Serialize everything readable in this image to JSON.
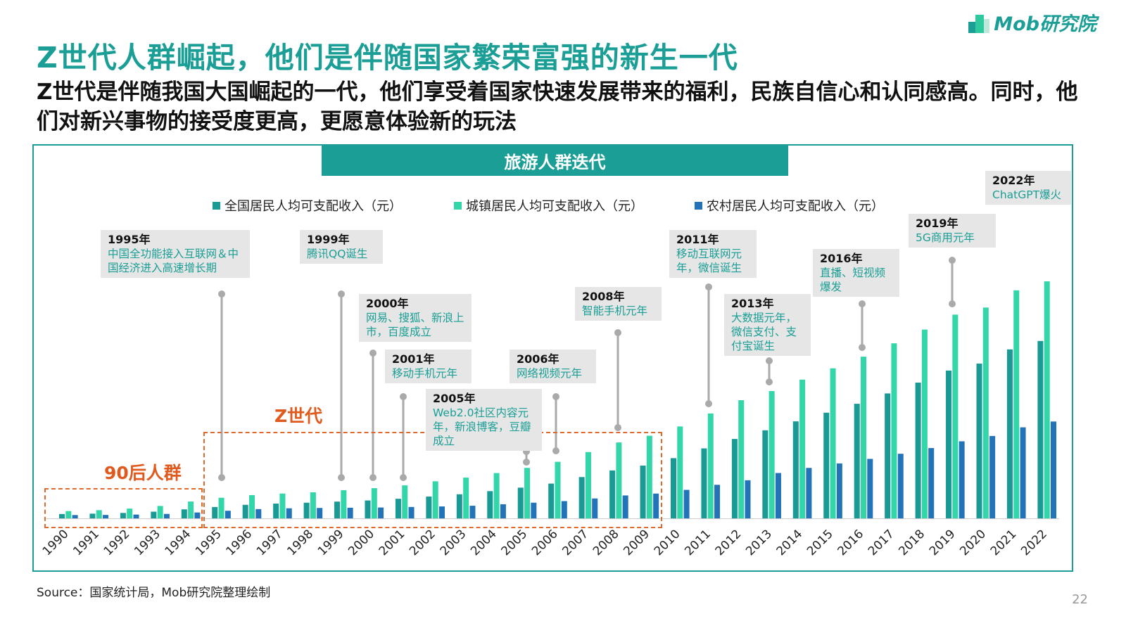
{
  "header": {
    "title": "Z世代人群崛起，他们是伴随国家繁荣富强的新生一代",
    "subtitle": "Z世代是伴随我国大国崛起的一代，他们享受着国家快速发展带来的福利，民族自信心和认同感高。同时，他们对新兴事物的接受度更高，更愿意体验新的玩法",
    "logo": "Mob研究院"
  },
  "chart_data": {
    "type": "bar",
    "title": "旅游人群迭代",
    "categories": [
      "1990",
      "1991",
      "1992",
      "1993",
      "1994",
      "1995",
      "1996",
      "1997",
      "1998",
      "1999",
      "2000",
      "2001",
      "2002",
      "2003",
      "2004",
      "2005",
      "2006",
      "2007",
      "2008",
      "2009",
      "2010",
      "2011",
      "2012",
      "2013",
      "2014",
      "2015",
      "2016",
      "2017",
      "2018",
      "2019",
      "2020",
      "2021",
      "2022"
    ],
    "series": [
      {
        "name": "全国居民人均可支配收入（元）",
        "color": "#1a9a95",
        "values": [
          904,
          976,
          1125,
          1385,
          1870,
          2363,
          2814,
          3070,
          3254,
          3485,
          3721,
          4070,
          4532,
          5007,
          5661,
          6385,
          7229,
          8584,
          9957,
          10977,
          12520,
          14551,
          16510,
          18311,
          20167,
          21966,
          23821,
          25974,
          28228,
          30733,
          32189,
          35128,
          36883
        ]
      },
      {
        "name": "城镇居民人均可支配收入（元）",
        "color": "#33d6a8",
        "values": [
          1510,
          1701,
          2027,
          2577,
          3496,
          4283,
          4839,
          5160,
          5425,
          5854,
          6280,
          6860,
          7703,
          8472,
          9422,
          10493,
          11760,
          13786,
          15781,
          17175,
          19109,
          21810,
          24565,
          26467,
          28844,
          31195,
          33616,
          36396,
          39251,
          42359,
          43834,
          47412,
          49283
        ]
      },
      {
        "name": "农村居民人均可支配收入（元）",
        "color": "#2273b8",
        "values": [
          686,
          709,
          784,
          922,
          1221,
          1578,
          1926,
          2090,
          2162,
          2210,
          2253,
          2366,
          2476,
          2622,
          2936,
          3255,
          3587,
          4140,
          4761,
          5153,
          5919,
          6977,
          7917,
          9430,
          10489,
          11422,
          12363,
          13432,
          14617,
          16021,
          17131,
          18931,
          20133
        ]
      }
    ],
    "ylim": [
      0,
      50000
    ],
    "legend": "top",
    "grid": false,
    "groups": [
      {
        "label": "90后人群",
        "from": "1990",
        "to": "1994"
      },
      {
        "label": "Z世代",
        "from": "1995",
        "to": "2009"
      }
    ],
    "annotations": [
      {
        "year": "1995年",
        "text": "中国全功能接入互联网＆中国经济进入高速增长期",
        "target": "1995"
      },
      {
        "year": "1999年",
        "text": "腾讯QQ诞生",
        "target": "1999"
      },
      {
        "year": "2000年",
        "text": "网易、搜狐、新浪上市，百度成立",
        "target": "2000"
      },
      {
        "year": "2001年",
        "text": "移动手机元年",
        "target": "2001"
      },
      {
        "year": "2005年",
        "text": "Web2.0社区内容元年，新浪博客，豆瓣成立",
        "target": "2005"
      },
      {
        "year": "2006年",
        "text": "网络视频元年",
        "target": "2006"
      },
      {
        "year": "2008年",
        "text": "智能手机元年",
        "target": "2008"
      },
      {
        "year": "2011年",
        "text": "移动互联网元年，微信诞生",
        "target": "2011"
      },
      {
        "year": "2013年",
        "text": "大数据元年，微信支付、支付宝诞生",
        "target": "2013"
      },
      {
        "year": "2016年",
        "text": "直播、短视频爆发",
        "target": "2016"
      },
      {
        "year": "2019年",
        "text": "5G商用元年",
        "target": "2019"
      },
      {
        "year": "2022年",
        "text": "ChatGPT爆火",
        "target": "2022"
      }
    ]
  },
  "footer": {
    "source": "Source：国家统计局，Mob研究院整理绘制",
    "page": "22"
  }
}
